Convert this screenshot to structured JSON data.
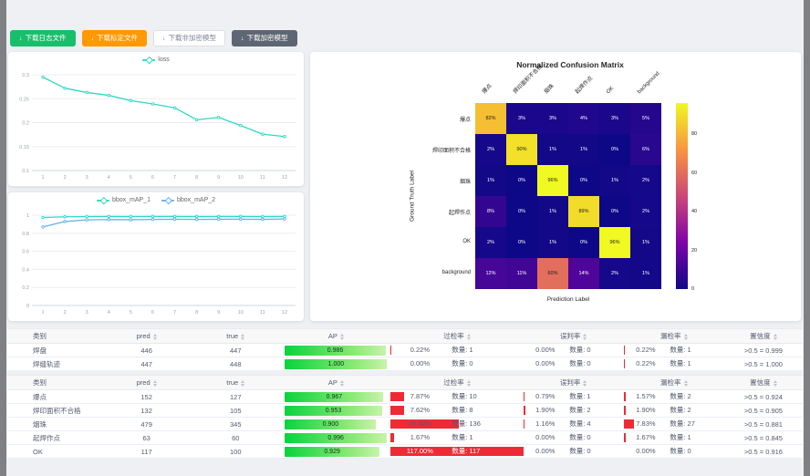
{
  "count_label": "数量",
  "colors": {
    "button_green": "#19be6b",
    "button_orange": "#ff9900",
    "button_dark": "#5f6673",
    "series_teal": "#2fd8c5",
    "series_blue": "#66b3e3",
    "ap_bar_green": "#08d33d",
    "rate_bar_red": "#ee2b35"
  },
  "toolbar": {
    "buttons": [
      {
        "label": "下载日志文件",
        "style": "green"
      },
      {
        "label": "下载标定文件",
        "style": "orange"
      },
      {
        "label": "下载非加密模型",
        "style": "plain"
      },
      {
        "label": "下载加密模型",
        "style": "dark"
      }
    ]
  },
  "chart_data": [
    {
      "type": "line",
      "title": "loss",
      "legend_position": "top",
      "grid": true,
      "x": [
        1,
        2,
        3,
        4,
        5,
        6,
        7,
        8,
        9,
        10,
        11,
        12
      ],
      "ylim": [
        0.1,
        0.3
      ],
      "yticks": [
        0.1,
        0.15,
        0.2,
        0.25,
        0.3
      ],
      "series": [
        {
          "name": "loss",
          "color": "#2fd8c5",
          "values": [
            0.295,
            0.272,
            0.263,
            0.257,
            0.246,
            0.239,
            0.231,
            0.206,
            0.211,
            0.194,
            0.176,
            0.171
          ]
        }
      ]
    },
    {
      "type": "line",
      "title": "bbox_mAP",
      "legend_position": "top",
      "grid": true,
      "x": [
        1,
        2,
        3,
        4,
        5,
        6,
        7,
        8,
        9,
        10,
        11,
        12
      ],
      "ylim": [
        0,
        1
      ],
      "yticks": [
        0,
        0.2,
        0.4,
        0.6,
        0.8,
        1
      ],
      "series": [
        {
          "name": "bbox_mAP_1",
          "color": "#2fd8c5",
          "values": [
            0.975,
            0.982,
            0.985,
            0.986,
            0.985,
            0.986,
            0.986,
            0.985,
            0.986,
            0.986,
            0.985,
            0.986
          ]
        },
        {
          "name": "bbox_mAP_2",
          "color": "#66b3e3",
          "values": [
            0.87,
            0.93,
            0.948,
            0.952,
            0.95,
            0.953,
            0.955,
            0.953,
            0.955,
            0.956,
            0.954,
            0.958
          ]
        }
      ]
    },
    {
      "type": "heatmap",
      "title": "Normalized Confusion Matrix",
      "xlabel": "Prediction Label",
      "ylabel": "Ground Truth Label",
      "categories": [
        "爆点",
        "焊印面积不合格",
        "烟珠",
        "起焊作点",
        "OK",
        "background"
      ],
      "unit": "%",
      "vmin": 0,
      "vmax": 96,
      "colormap": "plasma",
      "colorbar_ticks": [
        0,
        20,
        40,
        60,
        80
      ],
      "matrix": [
        [
          82,
          3,
          3,
          4,
          3,
          5
        ],
        [
          2,
          90,
          1,
          1,
          0,
          6
        ],
        [
          1,
          0,
          96,
          0,
          1,
          2
        ],
        [
          8,
          0,
          1,
          89,
          0,
          2
        ],
        [
          2,
          0,
          1,
          0,
          96,
          1
        ],
        [
          12,
          11,
          60,
          14,
          2,
          1
        ]
      ]
    }
  ],
  "tables": [
    {
      "headers": {
        "class": "类别",
        "pred": "pred",
        "true": "true",
        "ap": "AP",
        "over": "过检率",
        "mis": "误判率",
        "miss": "漏检率",
        "conf": "置信度"
      },
      "rows": [
        {
          "class": "焊盘",
          "pred": 446,
          "true": 447,
          "ap": 0.986,
          "over_pct": 0.22,
          "over_n": 1,
          "mis_pct": 0.0,
          "mis_n": 0,
          "miss_pct": 0.22,
          "miss_n": 1,
          "conf": ">0.5 = 0.999"
        },
        {
          "class": "焊缝轨迹",
          "pred": 447,
          "true": 448,
          "ap": 1.0,
          "over_pct": 0.0,
          "over_n": 0,
          "mis_pct": 0.0,
          "mis_n": 0,
          "miss_pct": 0.22,
          "miss_n": 1,
          "conf": ">0.5 = 1.000"
        }
      ]
    },
    {
      "headers": {
        "class": "类别",
        "pred": "pred",
        "true": "true",
        "ap": "AP",
        "over": "过检率",
        "mis": "误判率",
        "miss": "漏检率",
        "conf": "置信度"
      },
      "rows": [
        {
          "class": "爆点",
          "pred": 152,
          "true": 127,
          "ap": 0.967,
          "over_pct": 7.87,
          "over_n": 10,
          "mis_pct": 0.79,
          "mis_n": 1,
          "miss_pct": 1.57,
          "miss_n": 2,
          "conf": ">0.5 = 0.924"
        },
        {
          "class": "焊印面积不合格",
          "pred": 132,
          "true": 105,
          "ap": 0.953,
          "over_pct": 7.62,
          "over_n": 8,
          "mis_pct": 1.9,
          "mis_n": 2,
          "miss_pct": 1.9,
          "miss_n": 2,
          "conf": ">0.5 = 0.905"
        },
        {
          "class": "烟珠",
          "pred": 479,
          "true": 345,
          "ap": 0.9,
          "over_pct": 39.42,
          "over_n": 136,
          "mis_pct": 1.16,
          "mis_n": 4,
          "miss_pct": 7.83,
          "miss_n": 27,
          "conf": ">0.5 = 0.881"
        },
        {
          "class": "起焊作点",
          "pred": 63,
          "true": 60,
          "ap": 0.996,
          "over_pct": 1.67,
          "over_n": 1,
          "mis_pct": 0.0,
          "mis_n": 0,
          "miss_pct": 1.67,
          "miss_n": 1,
          "conf": ">0.5 = 0.845"
        },
        {
          "class": "OK",
          "pred": 117,
          "true": 100,
          "ap": 0.929,
          "over_pct": 117.0,
          "over_n": 117,
          "mis_pct": 0.0,
          "mis_n": 0,
          "miss_pct": 0.0,
          "miss_n": 0,
          "conf": ">0.5 = 0.916"
        }
      ]
    }
  ]
}
